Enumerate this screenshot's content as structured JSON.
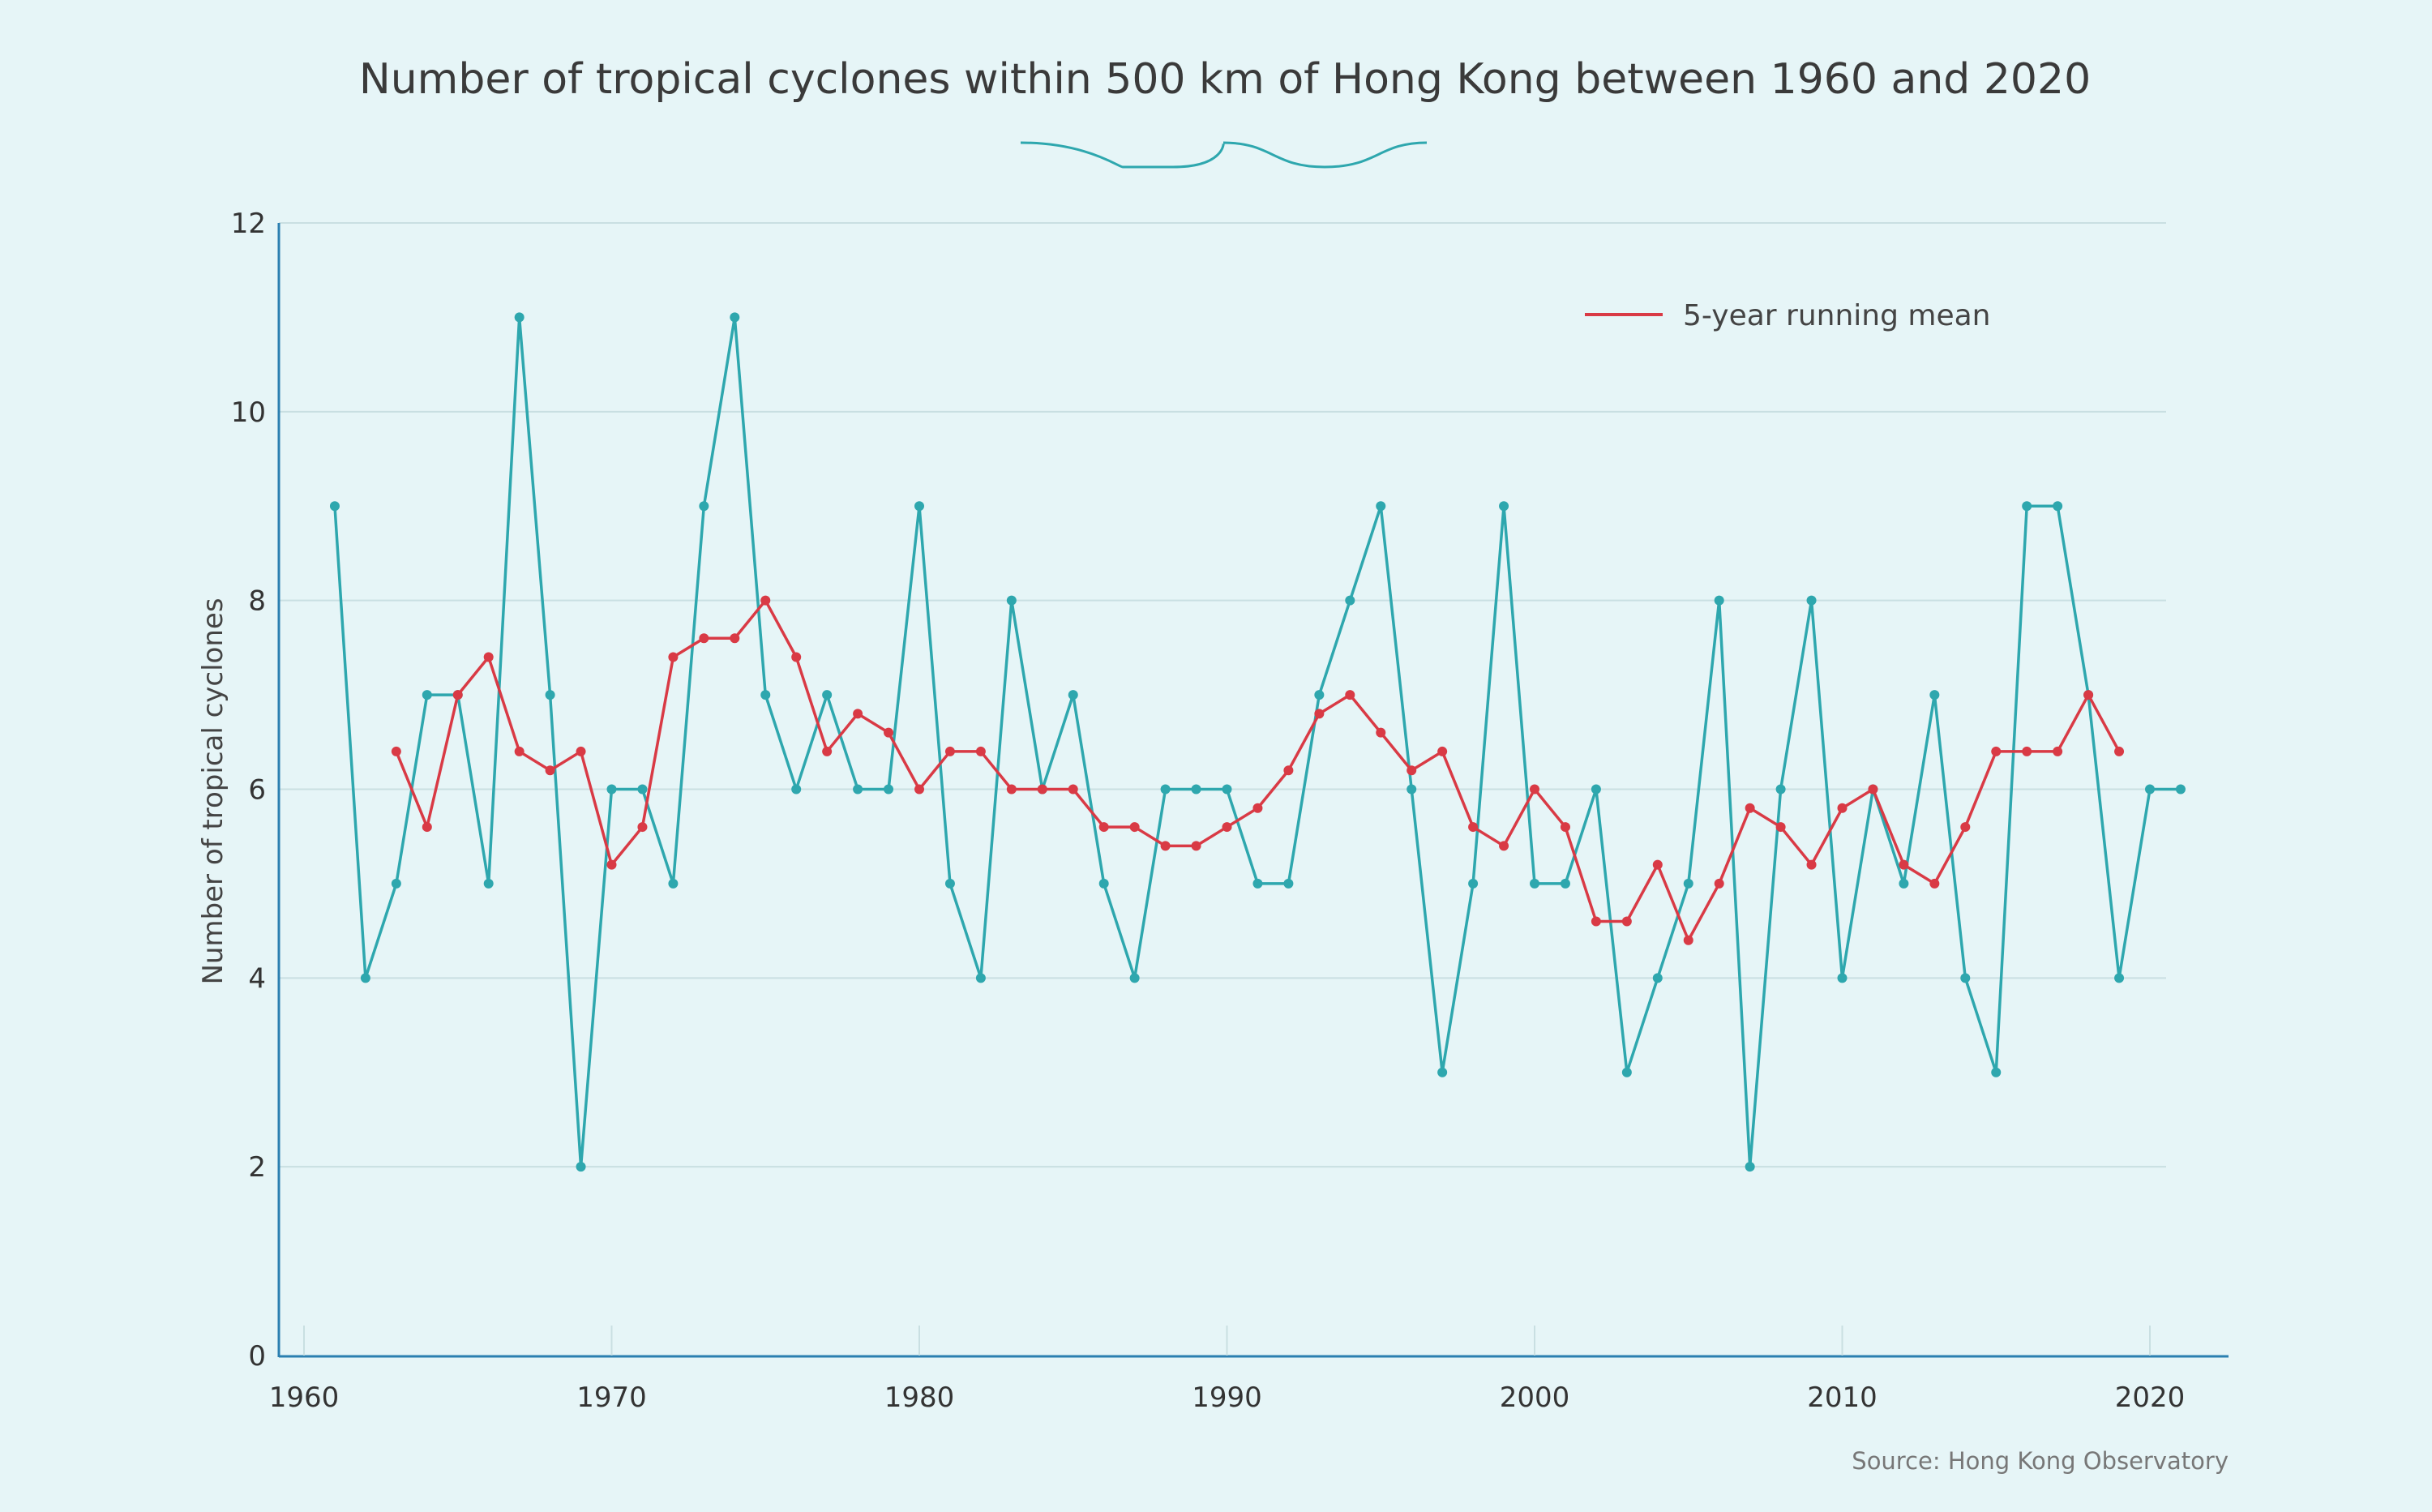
{
  "chart_data": {
    "type": "line",
    "title": "Number of tropical cyclones within 500 km of Hong Kong between 1960 and 2020",
    "xlabel": "",
    "ylabel": "Number of tropical cyclones",
    "xlim": [
      1960,
      2023
    ],
    "ylim": [
      0,
      12
    ],
    "x_ticks": [
      1960,
      1970,
      1980,
      1990,
      2000,
      2010,
      2020
    ],
    "y_ticks": [
      0,
      2,
      4,
      6,
      8,
      10,
      12
    ],
    "grid": "horizontal",
    "legend_position": "top-right",
    "source": "Source: Hong Kong Observatory",
    "series": [
      {
        "color": "#2ea7ae",
        "x": [
          1961,
          1962,
          1963,
          1964,
          1965,
          1966,
          1967,
          1968,
          1969,
          1970,
          1971,
          1972,
          1973,
          1974,
          1975,
          1976,
          1977,
          1978,
          1979,
          1980,
          1981,
          1982,
          1983,
          1984,
          1985,
          1986,
          1987,
          1988,
          1989,
          1990,
          1991,
          1992,
          1993,
          1994,
          1995,
          1996,
          1997,
          1998,
          1999,
          2000,
          2001,
          2002,
          2003,
          2004,
          2005,
          2006,
          2007,
          2008,
          2009,
          2010,
          2011,
          2012,
          2013,
          2014,
          2015,
          2016,
          2017,
          2018,
          2019,
          2020,
          2021
        ],
        "values": [
          9,
          4,
          5,
          7,
          7,
          5,
          11,
          7,
          2,
          6,
          6,
          5,
          9,
          11,
          7,
          6,
          7,
          6,
          6,
          9,
          5,
          4,
          8,
          6,
          7,
          5,
          4,
          6,
          6,
          6,
          5,
          5,
          7,
          8,
          9,
          6,
          3,
          5,
          9,
          5,
          5,
          6,
          3,
          4,
          5,
          8,
          2,
          6,
          8,
          4,
          6,
          5,
          7,
          4,
          3,
          9,
          9,
          7,
          4,
          6,
          6
        ]
      },
      {
        "name": "5-year running mean",
        "color": "#d93a45",
        "x": [
          1963,
          1964,
          1965,
          1966,
          1967,
          1968,
          1969,
          1970,
          1971,
          1972,
          1973,
          1974,
          1975,
          1976,
          1977,
          1978,
          1979,
          1980,
          1981,
          1982,
          1983,
          1984,
          1985,
          1986,
          1987,
          1988,
          1989,
          1990,
          1991,
          1992,
          1993,
          1994,
          1995,
          1996,
          1997,
          1998,
          1999,
          2000,
          2001,
          2002,
          2003,
          2004,
          2005,
          2006,
          2007,
          2008,
          2009,
          2010,
          2011,
          2012,
          2013,
          2014,
          2015,
          2016,
          2017,
          2018,
          2019
        ],
        "values": [
          6.4,
          5.6,
          7.0,
          7.4,
          6.4,
          6.2,
          6.4,
          5.2,
          5.6,
          7.4,
          7.6,
          7.6,
          8.0,
          7.4,
          6.4,
          6.8,
          6.6,
          6.0,
          6.4,
          6.4,
          6.0,
          6.0,
          6.0,
          5.6,
          5.6,
          5.4,
          5.4,
          5.6,
          5.8,
          6.2,
          6.8,
          7.0,
          6.6,
          6.2,
          6.4,
          5.6,
          5.4,
          6.0,
          5.6,
          4.6,
          4.6,
          5.2,
          4.4,
          5.0,
          5.8,
          5.6,
          5.2,
          5.8,
          6.0,
          5.2,
          5.0,
          5.6,
          6.4,
          6.4,
          6.4,
          7.0,
          6.4
        ]
      }
    ]
  }
}
